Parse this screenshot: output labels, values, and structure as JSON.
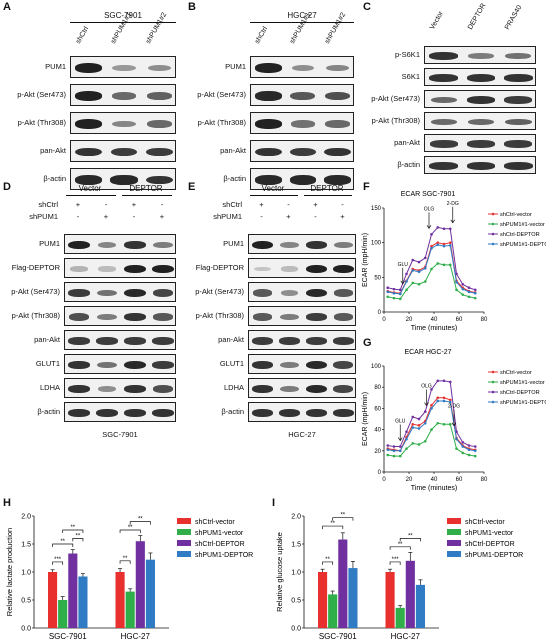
{
  "panels": {
    "A": {
      "letter": "A",
      "cellline": "SGC-7901",
      "lanes": [
        "shCtrl",
        "shPUM1#1",
        "shPUM1#2"
      ],
      "rows": [
        "PUM1",
        "p-Akt (Ser473)",
        "p-Akt (Thr308)",
        "pan-Akt",
        "β-actin"
      ],
      "intensity": [
        [
          1.0,
          0.35,
          0.4
        ],
        [
          1.0,
          0.6,
          0.65
        ],
        [
          1.0,
          0.45,
          0.6
        ],
        [
          0.9,
          0.85,
          0.85
        ],
        [
          0.95,
          0.95,
          0.9
        ]
      ]
    },
    "B": {
      "letter": "B",
      "cellline": "HGC-27",
      "lanes": [
        "shCtrl",
        "shPUM1#1",
        "shPUM1#2"
      ],
      "rows": [
        "PUM1",
        "p-Akt (Ser473)",
        "p-Akt (Thr308)",
        "pan-Akt",
        "β-actin"
      ],
      "intensity": [
        [
          1.0,
          0.4,
          0.45
        ],
        [
          0.95,
          0.7,
          0.75
        ],
        [
          1.0,
          0.55,
          0.6
        ],
        [
          0.9,
          0.85,
          0.9
        ],
        [
          0.95,
          0.95,
          0.95
        ]
      ]
    },
    "C": {
      "letter": "C",
      "lanes": [
        "Vector",
        "DEPTOR",
        "PRAS40"
      ],
      "rows": [
        "p-S6K1",
        "S6K1",
        "p-Akt (Ser473)",
        "p-Akt (Thr308)",
        "pan-Akt",
        "β-actin"
      ],
      "intensity": [
        [
          0.9,
          0.5,
          0.55
        ],
        [
          0.9,
          0.9,
          0.9
        ],
        [
          0.6,
          0.9,
          0.85
        ],
        [
          0.6,
          0.6,
          0.65
        ],
        [
          0.85,
          0.85,
          0.85
        ],
        [
          0.9,
          0.9,
          0.9
        ]
      ]
    },
    "D": {
      "letter": "D",
      "cellline": "SGC-7901",
      "groups": [
        "Vector",
        "DEPTOR"
      ],
      "cond_rows": [
        {
          "label": "shCtrl",
          "signs": [
            "+",
            "-",
            "+",
            "-"
          ]
        },
        {
          "label": "shPUM1",
          "signs": [
            "-",
            "+",
            "-",
            "+"
          ]
        }
      ],
      "rows": [
        "PUM1",
        "Flag-DEPTOR",
        "p-Akt (Ser473)",
        "p-Akt (Thr308)",
        "pan-Akt",
        "GLUT1",
        "LDHA",
        "β-actin"
      ],
      "intensity": [
        [
          1.0,
          0.45,
          0.9,
          0.5
        ],
        [
          0.2,
          0.15,
          1.0,
          1.0
        ],
        [
          0.85,
          0.55,
          0.95,
          0.8
        ],
        [
          0.75,
          0.5,
          0.9,
          0.7
        ],
        [
          0.85,
          0.85,
          0.85,
          0.85
        ],
        [
          0.9,
          0.55,
          0.95,
          0.85
        ],
        [
          0.9,
          0.4,
          0.9,
          0.75
        ],
        [
          0.9,
          0.9,
          0.9,
          0.9
        ]
      ]
    },
    "E": {
      "letter": "E",
      "cellline": "HGC-27",
      "groups": [
        "Vector",
        "DEPTOR"
      ],
      "cond_rows": [
        {
          "label": "shCtrl",
          "signs": [
            "+",
            "-",
            "+",
            "-"
          ]
        },
        {
          "label": "shPUM1",
          "signs": [
            "-",
            "+",
            "-",
            "+"
          ]
        }
      ],
      "rows": [
        "PUM1",
        "Flag-DEPTOR",
        "p-Akt (Ser473)",
        "p-Akt (Thr308)",
        "pan-Akt",
        "GLUT1",
        "LDHA",
        "β-actin"
      ],
      "intensity": [
        [
          1.0,
          0.45,
          0.9,
          0.5
        ],
        [
          0.1,
          0.15,
          1.0,
          1.0
        ],
        [
          0.7,
          0.4,
          0.95,
          0.7
        ],
        [
          0.7,
          0.5,
          0.85,
          0.7
        ],
        [
          0.85,
          0.85,
          0.85,
          0.85
        ],
        [
          0.9,
          0.5,
          0.95,
          0.8
        ],
        [
          0.9,
          0.5,
          0.95,
          0.8
        ],
        [
          0.9,
          0.9,
          0.9,
          0.9
        ]
      ]
    },
    "F": {
      "letter": "F"
    },
    "G": {
      "letter": "G"
    },
    "H": {
      "letter": "H"
    },
    "I": {
      "letter": "I"
    }
  },
  "colors": {
    "shCtrl-vector": "#e8312f",
    "shPUM1-vector": "#2fae4a",
    "shCtrl-DEPTOR": "#7030a0",
    "shPUM1-DEPTOR": "#2f7bc4"
  },
  "chart_data": [
    {
      "id": "F",
      "type": "line",
      "title": "ECAR SGC-7901",
      "xlabel": "Time (minutes)",
      "ylabel": "ECAR (mpH/min)",
      "xlim": [
        0,
        80
      ],
      "ylim": [
        0,
        150
      ],
      "xticks": [
        0,
        20,
        40,
        60,
        80
      ],
      "yticks": [
        0,
        50,
        100,
        150
      ],
      "x": [
        3,
        8,
        13,
        18,
        23,
        28,
        33,
        38,
        43,
        48,
        53,
        58,
        63,
        68,
        73
      ],
      "annotations": [
        {
          "text": "GLU",
          "x": 15
        },
        {
          "text": "OLG",
          "x": 36
        },
        {
          "text": "2-DG",
          "x": 55
        }
      ],
      "series": [
        {
          "name": "shCtrl-vector",
          "color": "#e8312f",
          "values": [
            30,
            28,
            27,
            45,
            62,
            60,
            65,
            95,
            100,
            98,
            100,
            45,
            35,
            30,
            28
          ]
        },
        {
          "name": "shPUM1#1-vector",
          "color": "#2fae4a",
          "values": [
            22,
            20,
            19,
            32,
            42,
            40,
            44,
            62,
            70,
            68,
            68,
            32,
            25,
            22,
            20
          ]
        },
        {
          "name": "shCtrl-DEPTOR",
          "color": "#7030a0",
          "values": [
            35,
            33,
            32,
            55,
            75,
            72,
            78,
            112,
            122,
            120,
            120,
            55,
            40,
            35,
            32
          ]
        },
        {
          "name": "shPUM1#1-DEPTOR",
          "color": "#2f7bc4",
          "values": [
            29,
            27,
            26,
            44,
            60,
            58,
            63,
            92,
            97,
            95,
            96,
            43,
            33,
            29,
            27
          ]
        }
      ]
    },
    {
      "id": "G",
      "type": "line",
      "title": "ECAR HGC-27",
      "xlabel": "Time (minutes)",
      "ylabel": "ECAR (mpH/min)",
      "xlim": [
        0,
        80
      ],
      "ylim": [
        0,
        100
      ],
      "xticks": [
        0,
        20,
        40,
        60,
        80
      ],
      "yticks": [
        0,
        20,
        40,
        60,
        80,
        100
      ],
      "x": [
        3,
        8,
        13,
        18,
        23,
        28,
        33,
        38,
        43,
        48,
        53,
        58,
        63,
        68,
        73
      ],
      "annotations": [
        {
          "text": "GLU",
          "x": 13
        },
        {
          "text": "OLG",
          "x": 34
        },
        {
          "text": "2-DG",
          "x": 56
        }
      ],
      "series": [
        {
          "name": "shCtrl-vector",
          "color": "#e8312f",
          "values": [
            22,
            21,
            20,
            33,
            45,
            44,
            48,
            63,
            70,
            70,
            68,
            32,
            25,
            22,
            21
          ]
        },
        {
          "name": "shPUM1#1-vector",
          "color": "#2fae4a",
          "values": [
            16,
            15,
            15,
            22,
            27,
            26,
            29,
            40,
            46,
            45,
            45,
            22,
            18,
            16,
            15
          ]
        },
        {
          "name": "shCtrl-DEPTOR",
          "color": "#7030a0",
          "values": [
            25,
            24,
            24,
            38,
            52,
            50,
            57,
            78,
            86,
            86,
            85,
            38,
            28,
            25,
            24
          ]
        },
        {
          "name": "shPUM1#1-DEPTOR",
          "color": "#2f7bc4",
          "values": [
            21,
            20,
            20,
            31,
            42,
            41,
            46,
            60,
            67,
            67,
            66,
            31,
            24,
            21,
            20
          ]
        }
      ]
    },
    {
      "id": "H",
      "type": "bar",
      "ylabel": "Relative lactate production",
      "ylim": [
        0,
        2.0
      ],
      "yticks": [
        0,
        0.5,
        1.0,
        1.5,
        2.0
      ],
      "categories": [
        "SGC-7901",
        "HGC-27"
      ],
      "legend": [
        "shCtrl-vector",
        "shPUM1-vector",
        "shCtrl-DEPTOR",
        "shPUM1-DEPTOR"
      ],
      "series": [
        {
          "name": "shCtrl-vector",
          "color": "#e8312f",
          "values": [
            1.0,
            1.0
          ],
          "err": [
            0.04,
            0.06
          ]
        },
        {
          "name": "shPUM1-vector",
          "color": "#2fae4a",
          "values": [
            0.5,
            0.65
          ],
          "err": [
            0.06,
            0.05
          ]
        },
        {
          "name": "shCtrl-DEPTOR",
          "color": "#7030a0",
          "values": [
            1.33,
            1.55
          ],
          "err": [
            0.07,
            0.1
          ]
        },
        {
          "name": "shPUM1-DEPTOR",
          "color": "#2f7bc4",
          "values": [
            0.92,
            1.22
          ],
          "err": [
            0.05,
            0.12
          ]
        }
      ],
      "significance": [
        {
          "cat": 0,
          "from": 0,
          "to": 1,
          "text": "***",
          "y": 1.18
        },
        {
          "cat": 0,
          "from": 0,
          "to": 2,
          "text": "**",
          "y": 1.5
        },
        {
          "cat": 0,
          "from": 2,
          "to": 3,
          "text": "**",
          "y": 1.6
        },
        {
          "cat": 0,
          "from": 1,
          "to": 3,
          "text": "**",
          "y": 1.75
        },
        {
          "cat": 1,
          "from": 0,
          "to": 1,
          "text": "**",
          "y": 1.2
        },
        {
          "cat": 1,
          "from": 0,
          "to": 2,
          "text": "**",
          "y": 1.75
        },
        {
          "cat": 1,
          "from": 1,
          "to": 3,
          "text": "**",
          "y": 1.9
        }
      ]
    },
    {
      "id": "I",
      "type": "bar",
      "ylabel": "Relative glucose uptake",
      "ylim": [
        0,
        2.0
      ],
      "yticks": [
        0,
        0.5,
        1.0,
        1.5,
        2.0
      ],
      "categories": [
        "SGC-7901",
        "HGC-27"
      ],
      "legend": [
        "shCtrl-vector",
        "shPUM1-vector",
        "shCtrl-DEPTOR",
        "shPUM1-DEPTOR"
      ],
      "series": [
        {
          "name": "shCtrl-vector",
          "color": "#e8312f",
          "values": [
            1.0,
            1.0
          ],
          "err": [
            0.05,
            0.05
          ]
        },
        {
          "name": "shPUM1-vector",
          "color": "#2fae4a",
          "values": [
            0.6,
            0.36
          ],
          "err": [
            0.06,
            0.04
          ]
        },
        {
          "name": "shCtrl-DEPTOR",
          "color": "#7030a0",
          "values": [
            1.58,
            1.2
          ],
          "err": [
            0.12,
            0.15
          ]
        },
        {
          "name": "shPUM1-DEPTOR",
          "color": "#2f7bc4",
          "values": [
            1.07,
            0.77
          ],
          "err": [
            0.12,
            0.09
          ]
        }
      ],
      "significance": [
        {
          "cat": 0,
          "from": 0,
          "to": 1,
          "text": "**",
          "y": 1.18
        },
        {
          "cat": 0,
          "from": 0,
          "to": 2,
          "text": "**",
          "y": 1.82
        },
        {
          "cat": 0,
          "from": 1,
          "to": 3,
          "text": "**",
          "y": 1.97
        },
        {
          "cat": 1,
          "from": 0,
          "to": 1,
          "text": "***",
          "y": 1.18
        },
        {
          "cat": 1,
          "from": 0,
          "to": 2,
          "text": "**",
          "y": 1.45
        },
        {
          "cat": 1,
          "from": 1,
          "to": 3,
          "text": "**",
          "y": 1.6
        }
      ]
    }
  ]
}
